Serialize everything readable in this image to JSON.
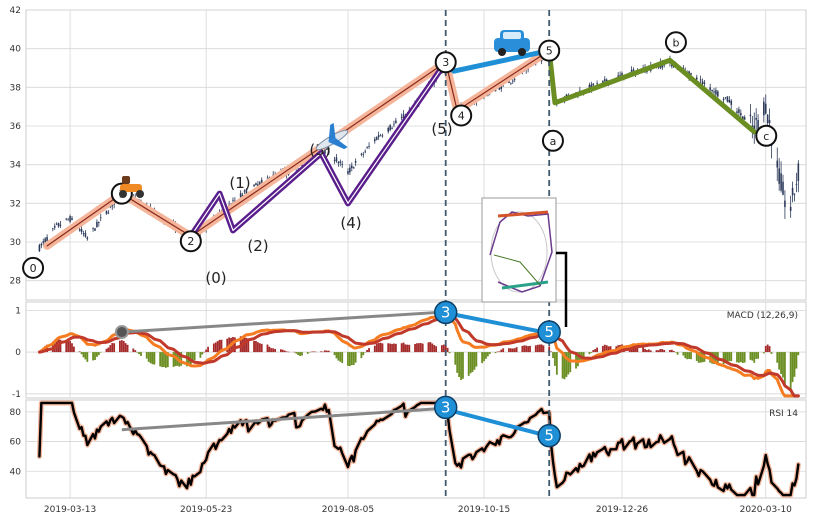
{
  "chart_data": {
    "type": "line",
    "panels": [
      {
        "name": "price",
        "ylim": [
          27,
          42
        ],
        "yticks": [
          28,
          30,
          32,
          34,
          36,
          38,
          40,
          42
        ],
        "series": [],
        "wave_points": [
          {
            "date": "2019-03-01",
            "value": 29.8,
            "label": "0"
          },
          {
            "date": "2019-04-09",
            "value": 32.5,
            "label": "1"
          },
          {
            "date": "2019-05-15",
            "value": 30.3,
            "label": "2"
          },
          {
            "date": "2019-09-25",
            "value": 39.3,
            "label": "3"
          },
          {
            "date": "2019-10-01",
            "value": 36.8,
            "label": "4"
          },
          {
            "date": "2019-11-18",
            "value": 39.9,
            "label": "5"
          },
          {
            "date": "2019-11-21",
            "value": 37.2,
            "label": "a"
          },
          {
            "date": "2020-01-20",
            "value": 39.4,
            "label": "b"
          },
          {
            "date": "2020-03-04",
            "value": 35.7,
            "label": "c"
          }
        ],
        "sub_wave_labels": [
          "(0)",
          "(1)",
          "(2)",
          "(3)",
          "(4)",
          "(5)"
        ]
      },
      {
        "name": "MACD (12,26,9)",
        "ylim": [
          -1.1,
          1.2
        ],
        "yticks": [
          -1,
          0,
          1
        ]
      },
      {
        "name": "RSI 14",
        "ylim": [
          22,
          88
        ],
        "yticks": [
          40,
          60,
          80
        ]
      }
    ],
    "x_tick_labels": [
      "2019-03-13",
      "2019-05-23",
      "2019-08-05",
      "2019-10-15",
      "2019-12-26",
      "2020-03-10"
    ],
    "x_tick_dates": [
      "2019-03-13",
      "2019-05-23",
      "2019-08-05",
      "2019-10-15",
      "2019-12-26",
      "2020-03-10"
    ],
    "x_range": [
      "2019-02-18",
      "2020-03-31"
    ],
    "vlines": [
      "2019-09-25",
      "2019-11-18"
    ],
    "divergence_labels": [
      "3",
      "5"
    ],
    "colors": {
      "candle": "#2c3a5a",
      "impulse": "#f4b59a",
      "purple": "#5a1e8c",
      "correction": "#6b8e23",
      "blue": "#1f8fd6",
      "macd": "#f57c20",
      "signal": "#c0392b",
      "hist_pos": "#a52a2a",
      "hist_neg": "#6b8e23",
      "rsi_edge": "#f4b59a",
      "rsi": "#000000",
      "grid": "#d6d6d6"
    }
  }
}
